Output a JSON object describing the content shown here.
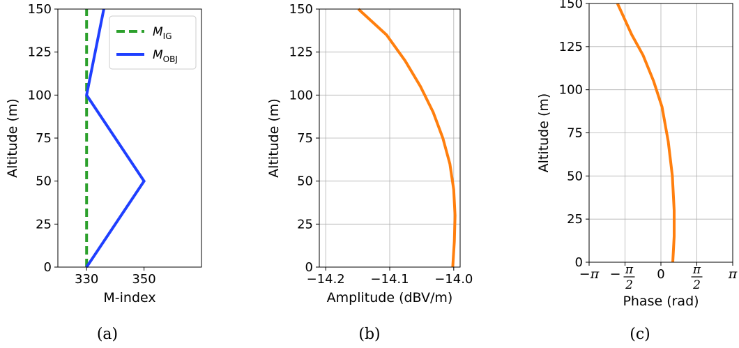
{
  "chart_data": [
    {
      "type": "line",
      "panel": "a",
      "caption": "(a)",
      "xlabel": "M-index",
      "ylabel": "Altitude (m)",
      "xlim": [
        320,
        370
      ],
      "ylim": [
        0,
        150
      ],
      "xticks": [
        330,
        350
      ],
      "yticks": [
        0,
        25,
        50,
        75,
        100,
        125,
        150
      ],
      "grid": false,
      "legend_position": "top-right",
      "series": [
        {
          "legend_main": "M",
          "legend_sub": "IG",
          "color": "#2ca02c",
          "style": "dashed",
          "x": [
            330,
            330
          ],
          "y": [
            0,
            150
          ]
        },
        {
          "legend_main": "M",
          "legend_sub": "OBJ",
          "color": "#1f3fff",
          "style": "solid",
          "x": [
            330,
            350,
            330,
            336
          ],
          "y": [
            0,
            50,
            100,
            150
          ]
        }
      ]
    },
    {
      "type": "line",
      "panel": "b",
      "caption": "(b)",
      "xlabel": "Amplitude (dBV/m)",
      "ylabel": "Altitude (m)",
      "xlim": [
        -14.21,
        -13.99
      ],
      "ylim": [
        0,
        150
      ],
      "xticks": [
        -14.2,
        -14.1,
        -14.0
      ],
      "xtick_labels": [
        "−14.2",
        "−14.1",
        "−14.0"
      ],
      "yticks": [
        0,
        25,
        50,
        75,
        100,
        125,
        150
      ],
      "grid": true,
      "series": [
        {
          "color": "#ff7f0e",
          "x": [
            -14.0015,
            -13.999,
            -13.998,
            -14.0,
            -14.006,
            -14.017,
            -14.032,
            -14.052,
            -14.076,
            -14.105,
            -14.149
          ],
          "y": [
            0,
            15,
            30,
            45,
            60,
            75,
            90,
            105,
            120,
            135,
            150
          ]
        }
      ]
    },
    {
      "type": "line",
      "panel": "c",
      "caption": "(c)",
      "xlabel": "Phase (rad)",
      "ylabel": "Altitude (m)",
      "xlim": [
        -3.1416,
        3.1416
      ],
      "ylim": [
        0,
        150
      ],
      "xticks": [
        -3.1416,
        -1.5708,
        0,
        1.5708,
        3.1416
      ],
      "xtick_labels": [
        "−π",
        "−π/2",
        "0",
        "π/2",
        "π"
      ],
      "yticks": [
        0,
        25,
        50,
        75,
        100,
        125,
        150
      ],
      "grid": true,
      "series": [
        {
          "color": "#ff7f0e",
          "x": [
            0.52,
            0.58,
            0.58,
            0.5,
            0.32,
            0.05,
            -0.32,
            -0.78,
            -1.28,
            -1.9
          ],
          "y": [
            0,
            15,
            30,
            50,
            70,
            90,
            105,
            120,
            132,
            150
          ]
        }
      ]
    }
  ]
}
